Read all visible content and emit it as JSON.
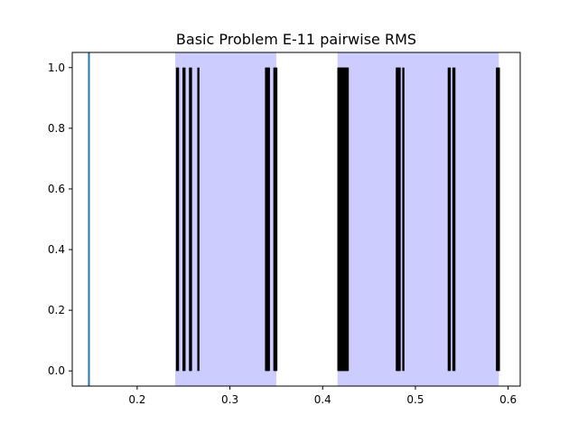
{
  "chart_data": {
    "type": "event-plot",
    "title": "Basic Problem E-11 pairwise RMS",
    "xlabel": "",
    "ylabel": "",
    "xlim": [
      0.13,
      0.613
    ],
    "ylim": [
      -0.05,
      1.05
    ],
    "x_ticks": [
      0.2,
      0.3,
      0.4,
      0.5,
      0.6
    ],
    "x_tick_labels": [
      "0.2",
      "0.3",
      "0.4",
      "0.5",
      "0.6"
    ],
    "y_ticks": [
      0.0,
      0.2,
      0.4,
      0.6,
      0.8,
      1.0
    ],
    "y_tick_labels": [
      "0.0",
      "0.2",
      "0.4",
      "0.6",
      "0.8",
      "1.0"
    ],
    "grid": false,
    "reference_line": {
      "x": 0.148,
      "color": "#1f77b4"
    },
    "shaded_regions": [
      {
        "x_start": 0.241,
        "x_end": 0.35,
        "color": "#ccccff"
      },
      {
        "x_start": 0.416,
        "x_end": 0.59,
        "color": "#ccccff"
      }
    ],
    "event_lines": {
      "y_range": [
        0.0,
        1.0
      ],
      "color": "#000000",
      "x": [
        0.243,
        0.244,
        0.25,
        0.251,
        0.257,
        0.258,
        0.266,
        0.339,
        0.34,
        0.341,
        0.342,
        0.348,
        0.349,
        0.35,
        0.417,
        0.418,
        0.419,
        0.42,
        0.421,
        0.422,
        0.423,
        0.424,
        0.425,
        0.426,
        0.427,
        0.48,
        0.481,
        0.482,
        0.483,
        0.487,
        0.536,
        0.537,
        0.541,
        0.542,
        0.588,
        0.589,
        0.59
      ]
    }
  }
}
